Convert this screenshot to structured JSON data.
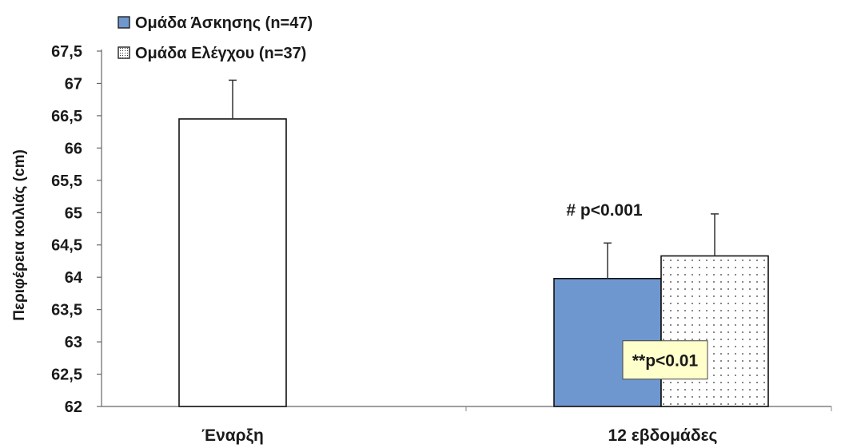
{
  "chart_data": {
    "type": "bar",
    "ylabel": "Περιφέρεια κοιλιάς (cm)",
    "xlabel": "",
    "ylim": [
      62,
      67.5
    ],
    "ytick_step": 0.5,
    "ytick_labels": [
      "62",
      "62,5",
      "63",
      "63,5",
      "64",
      "64,5",
      "65",
      "65,5",
      "66",
      "66,5",
      "67",
      "67,5"
    ],
    "categories": [
      "Έναρξη",
      "12 εβδομάδες"
    ],
    "legend_position": "top-left",
    "grid": false,
    "series": [
      {
        "name": "Ομάδα Άσκησης (n=47)",
        "color": "#6f97cf",
        "pattern": "solid",
        "values": [
          null,
          63.98
        ],
        "error": [
          null,
          0.55
        ]
      },
      {
        "name": "Ομάδα Ελέγχου (n=37)",
        "color": "#ffffff",
        "pattern": "dotted",
        "values": [
          null,
          64.33
        ],
        "error": [
          null,
          0.65
        ]
      }
    ],
    "baseline_bar": {
      "category": "Έναρξη",
      "value": 66.45,
      "error": 0.6,
      "color": "#ffffff"
    },
    "annotations": [
      {
        "text": "# p<0.001",
        "category": "12 εβδομάδες",
        "value": 65.05
      },
      {
        "text": "**p<0.01",
        "category": "12 εβδομάδες",
        "value": 62.72,
        "boxed": true,
        "box_color": "#ffffcc"
      }
    ]
  }
}
